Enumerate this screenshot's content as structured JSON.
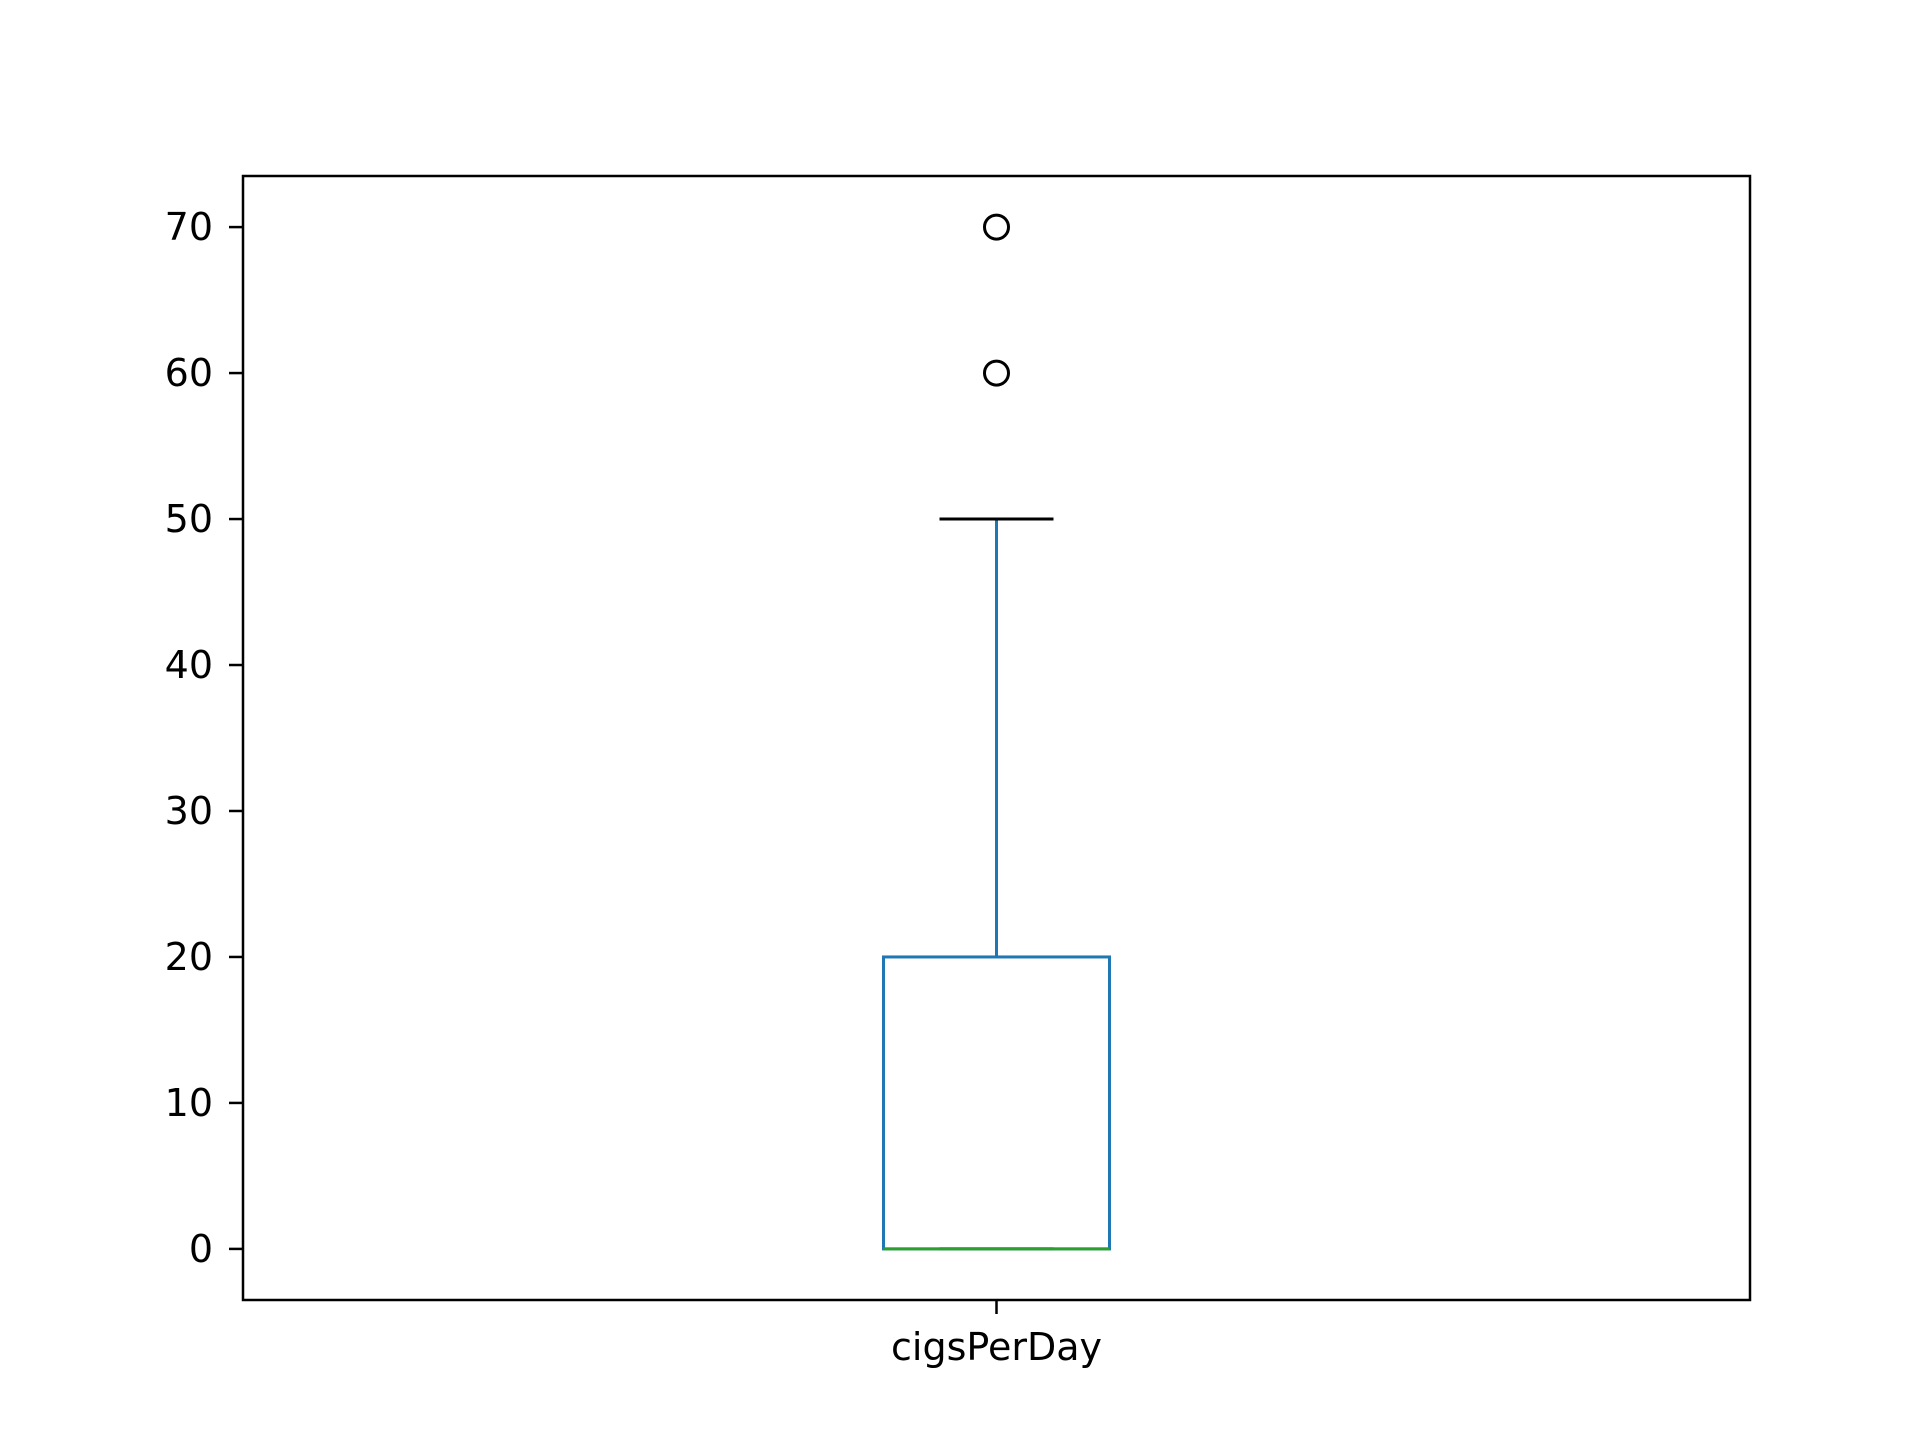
{
  "chart_data": {
    "type": "box",
    "title": "",
    "xlabel": "",
    "ylabel": "",
    "categories": [
      "cigsPerDay"
    ],
    "boxes": [
      {
        "category": "cigsPerDay",
        "min": 0,
        "q1": 0,
        "median": 0,
        "q3": 20,
        "whisker_low": 0,
        "whisker_high": 50,
        "outliers": [
          60,
          70
        ]
      }
    ],
    "yticks": [
      0,
      10,
      20,
      30,
      40,
      50,
      60,
      70
    ],
    "ylim": [
      -3.5,
      73.5
    ],
    "grid": false,
    "legend": "none",
    "colors": {
      "box": "#1f77b4",
      "whisker": "#1f77b4",
      "cap": "#000000",
      "median": "#2ca02c",
      "outlier": "#000000",
      "axes": "#000000"
    }
  }
}
